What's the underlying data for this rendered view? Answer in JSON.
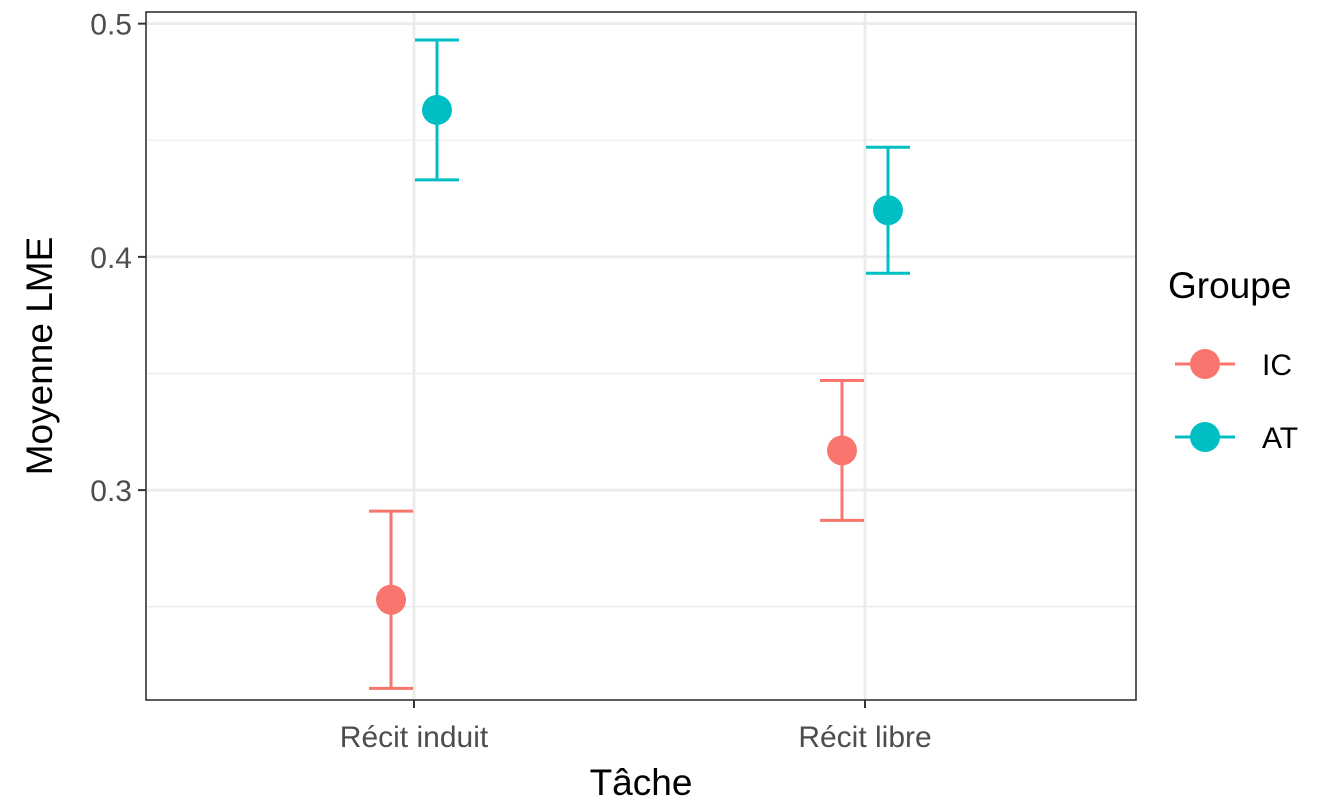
{
  "chart_data": {
    "type": "scatter",
    "xlabel": "Tâche",
    "ylabel": "Moyenne LME",
    "categories": [
      "Récit induit",
      "Récit libre"
    ],
    "ylim": [
      0.21,
      0.505
    ],
    "yticks": [
      "0.3",
      "0.4",
      "0.5"
    ],
    "grid": true,
    "legend": {
      "title": "Groupe",
      "position": "right",
      "entries": [
        "IC",
        "AT"
      ]
    },
    "series": [
      {
        "name": "IC",
        "color": "#F8766D",
        "values": [
          0.253,
          0.317
        ],
        "lower": [
          0.215,
          0.287
        ],
        "upper": [
          0.291,
          0.347
        ]
      },
      {
        "name": "AT",
        "color": "#00BFC4",
        "values": [
          0.463,
          0.42
        ],
        "lower": [
          0.433,
          0.393
        ],
        "upper": [
          0.493,
          0.447
        ]
      }
    ]
  }
}
